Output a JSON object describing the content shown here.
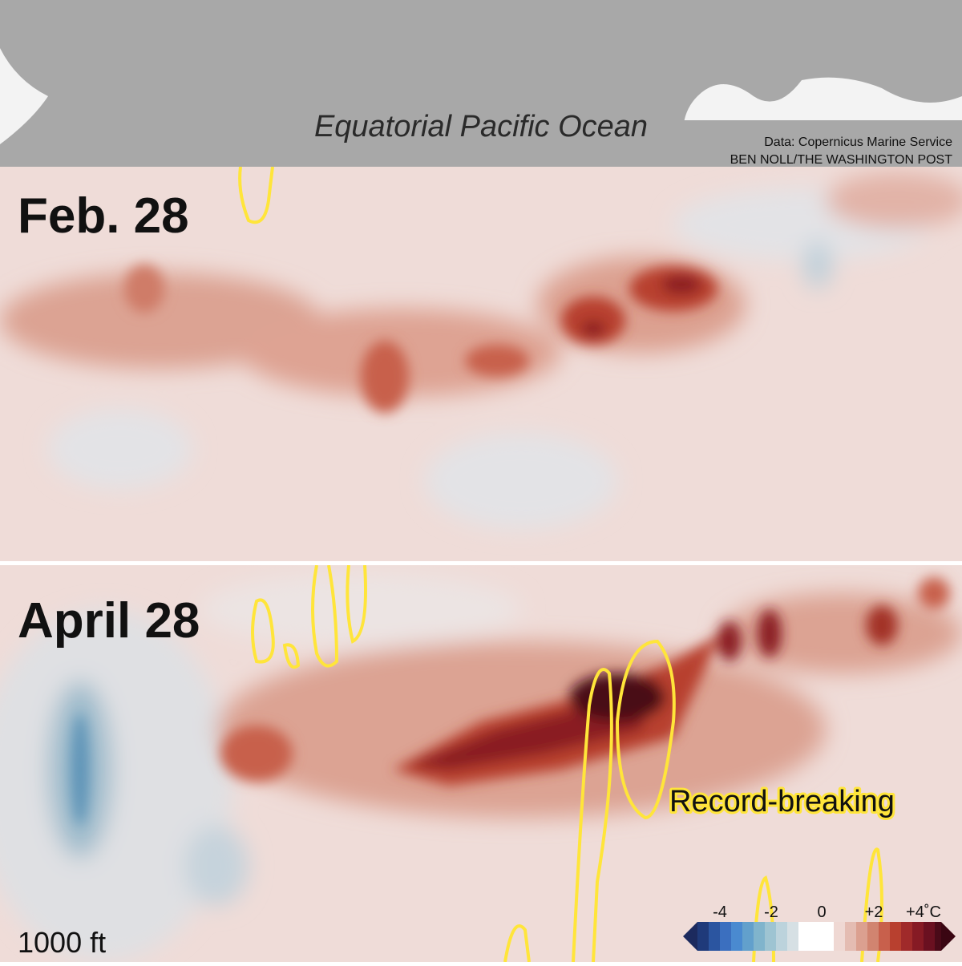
{
  "header": {
    "title": "Equatorial Pacific Ocean",
    "source": "Data: Copernicus Marine Service",
    "credit": "BEN NOLL/THE WASHINGTON POST"
  },
  "panels": [
    {
      "label": "Feb. 28"
    },
    {
      "label": "April 28",
      "annotation": "Record-breaking"
    }
  ],
  "depth_label": "1000 ft",
  "legend": {
    "ticks": [
      "-4",
      "-2",
      "0",
      "+2",
      "+4˚C"
    ]
  }
}
